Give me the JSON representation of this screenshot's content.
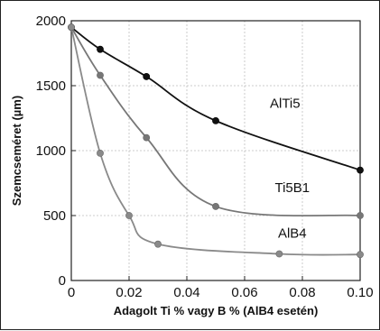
{
  "chart_data": {
    "type": "line",
    "xlabel": "Adagolt Ti % vagy B % (AlB4 esetén)",
    "ylabel": "Szemcseméret (µm)",
    "xlim": [
      0,
      0.1
    ],
    "ylim": [
      0,
      2000
    ],
    "x_ticks": [
      "0",
      "0.02",
      "0.04",
      "0.06",
      "0.08",
      "0.10"
    ],
    "y_ticks": [
      "0",
      "500",
      "1000",
      "1500",
      "2000"
    ],
    "grid": true,
    "series": [
      {
        "name": "AlTi5",
        "color": "#111111",
        "x": [
          0,
          0.01,
          0.026,
          0.05,
          0.1
        ],
        "y": [
          1950,
          1780,
          1570,
          1230,
          850
        ]
      },
      {
        "name": "Ti5B1",
        "color": "#777777",
        "x": [
          0,
          0.01,
          0.026,
          0.05,
          0.1
        ],
        "y": [
          1950,
          1580,
          1100,
          570,
          500
        ]
      },
      {
        "name": "AlB4",
        "color": "#8a8a8a",
        "x": [
          0,
          0.01,
          0.02,
          0.03,
          0.072,
          0.1
        ],
        "y": [
          1950,
          980,
          500,
          280,
          205,
          200
        ]
      }
    ]
  }
}
